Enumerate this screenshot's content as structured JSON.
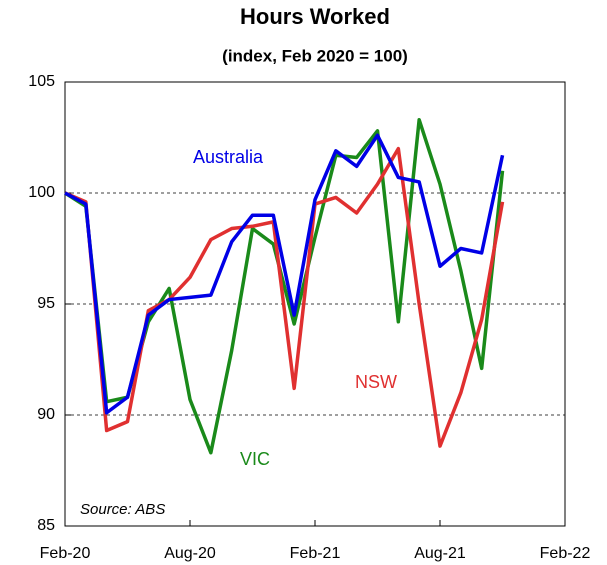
{
  "chart_data": {
    "type": "line",
    "title": "Hours Worked",
    "subtitle": "(index, Feb 2020 = 100)",
    "x": [
      0,
      1,
      2,
      3,
      4,
      5,
      6,
      7,
      8,
      9,
      10,
      11,
      12,
      13,
      14,
      15,
      16,
      17,
      18,
      19,
      20,
      21
    ],
    "xlim": [
      0,
      24
    ],
    "xticks": [
      {
        "value": 0,
        "label": "Feb-20"
      },
      {
        "value": 6,
        "label": "Aug-20"
      },
      {
        "value": 12,
        "label": "Feb-21"
      },
      {
        "value": 18,
        "label": "Aug-21"
      },
      {
        "value": 24,
        "label": "Feb-22"
      }
    ],
    "ylim": [
      85,
      105
    ],
    "yticks": [
      85,
      90,
      95,
      100,
      105
    ],
    "grid": true,
    "series": [
      {
        "name": "Australia",
        "color": "#0000e6",
        "values": [
          100,
          99.5,
          90.1,
          90.8,
          94.5,
          95.2,
          95.3,
          95.4,
          97.8,
          99.0,
          99.0,
          94.5,
          99.7,
          101.9,
          101.2,
          102.6,
          100.7,
          100.5,
          96.7,
          97.5,
          97.3,
          101.7
        ]
      },
      {
        "name": "NSW",
        "color": "#e03030",
        "values": [
          100,
          99.6,
          89.3,
          89.7,
          94.7,
          95.2,
          96.2,
          97.9,
          98.4,
          98.5,
          98.7,
          91.2,
          99.5,
          99.8,
          99.1,
          100.4,
          102.0,
          95.0,
          88.6,
          91.0,
          94.3,
          99.6
        ]
      },
      {
        "name": "VIC",
        "color": "#1a8a1a",
        "values": [
          100,
          99.4,
          90.6,
          90.8,
          94.2,
          95.7,
          90.7,
          88.3,
          92.9,
          98.4,
          97.7,
          94.1,
          98.0,
          101.7,
          101.6,
          102.8,
          94.2,
          103.3,
          100.4,
          96.5,
          92.1,
          101.0
        ]
      }
    ],
    "annotations": [
      {
        "text": "Australia",
        "color": "#0000e6"
      },
      {
        "text": "NSW",
        "color": "#e03030"
      },
      {
        "text": "VIC",
        "color": "#1a8a1a"
      },
      {
        "text": "Source: ABS",
        "color": "#000000"
      }
    ]
  }
}
